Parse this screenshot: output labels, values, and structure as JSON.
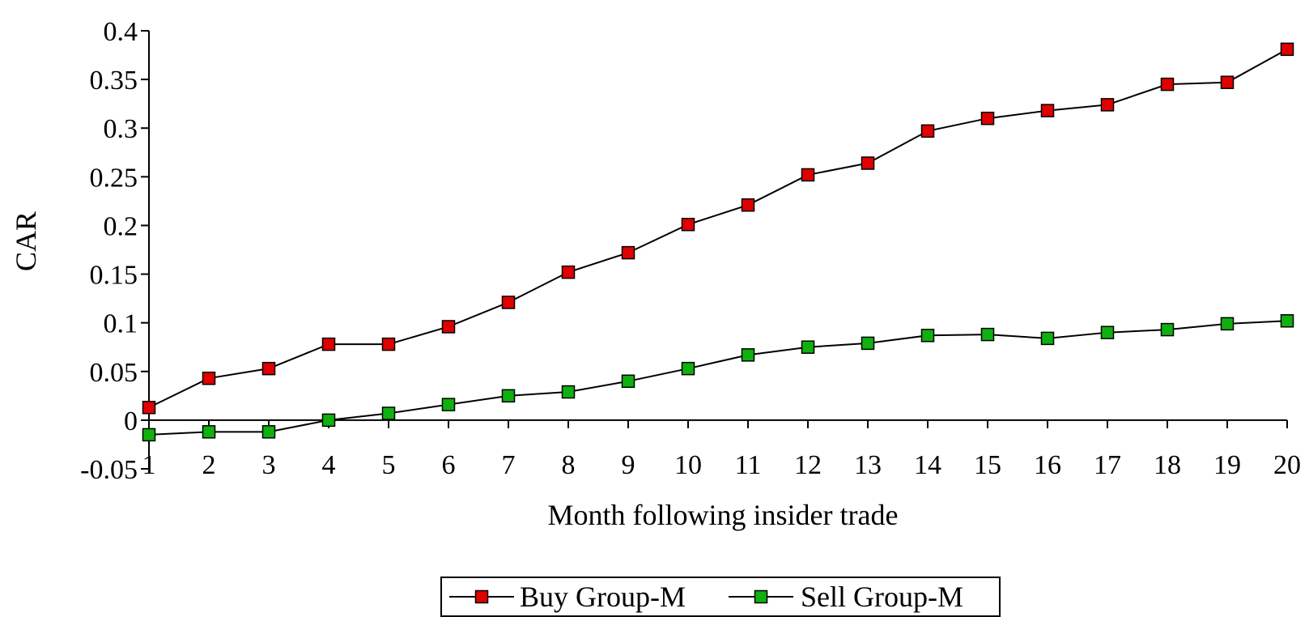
{
  "chart_data": {
    "type": "line",
    "title": "",
    "xlabel": "Month following insider trade",
    "ylabel": "CAR",
    "categories": [
      "1",
      "2",
      "3",
      "4",
      "5",
      "6",
      "7",
      "8",
      "9",
      "10",
      "11",
      "12",
      "13",
      "14",
      "15",
      "16",
      "17",
      "18",
      "19",
      "20"
    ],
    "ylim": [
      -0.05,
      0.4
    ],
    "yticks": [
      -0.05,
      0,
      0.05,
      0.1,
      0.15,
      0.2,
      0.25,
      0.3,
      0.35,
      0.4
    ],
    "ytick_labels": [
      "-0.05",
      "0",
      "0.05",
      "0.1",
      "0.15",
      "0.2",
      "0.25",
      "0.3",
      "0.35",
      "0.4"
    ],
    "grid": false,
    "legend_position": "bottom-center",
    "series": [
      {
        "name": "Buy Group-M",
        "color": "#e00000",
        "marker": "square",
        "values": [
          0.013,
          0.043,
          0.053,
          0.078,
          0.078,
          0.096,
          0.121,
          0.152,
          0.172,
          0.201,
          0.221,
          0.252,
          0.264,
          0.297,
          0.31,
          0.318,
          0.324,
          0.345,
          0.347,
          0.381
        ]
      },
      {
        "name": "Sell Group-M",
        "color": "#10b010",
        "marker": "square",
        "values": [
          -0.015,
          -0.012,
          -0.012,
          0.0,
          0.007,
          0.016,
          0.025,
          0.029,
          0.04,
          0.053,
          0.067,
          0.075,
          0.079,
          0.087,
          0.088,
          0.084,
          0.09,
          0.093,
          0.099,
          0.102
        ]
      }
    ]
  }
}
